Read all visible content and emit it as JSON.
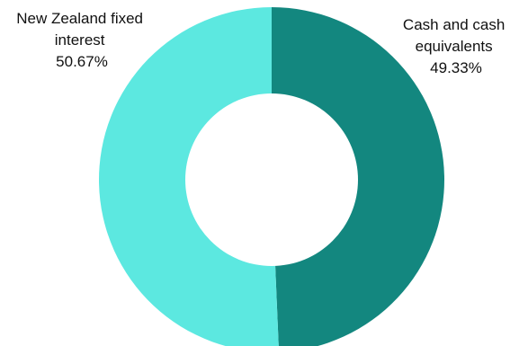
{
  "chart_data": {
    "type": "pie",
    "donut": true,
    "start_angle_deg": 0,
    "direction": "clockwise",
    "slices": [
      {
        "name": "Cash and cash equivalents",
        "label_lines": [
          "Cash and cash",
          "equivalents"
        ],
        "value": 49.33,
        "value_label": "49.33%",
        "color": "#13877f"
      },
      {
        "name": "New Zealand fixed interest",
        "label_lines": [
          "New Zealand fixed",
          "interest"
        ],
        "value": 50.67,
        "value_label": "50.67%",
        "color": "#5ce8e0"
      }
    ],
    "legend": "none",
    "grid": false
  }
}
